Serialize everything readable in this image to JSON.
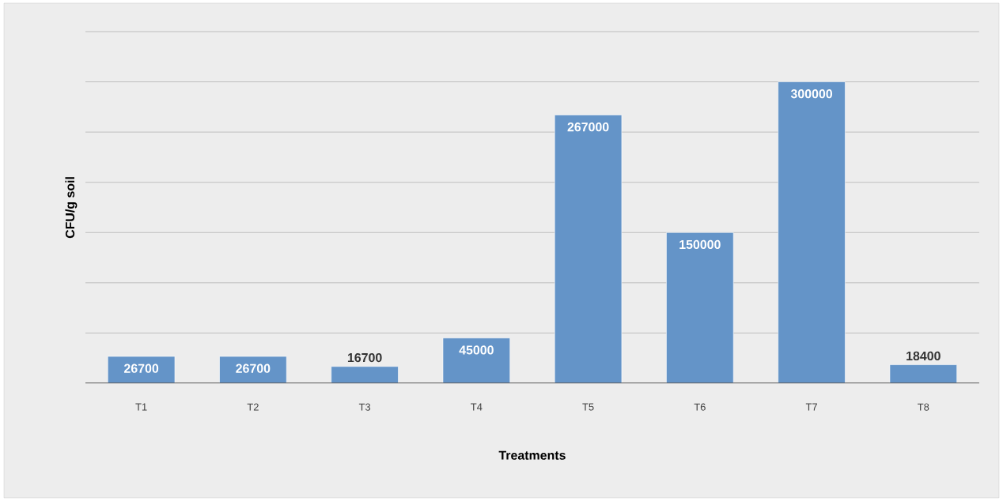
{
  "chart_data": {
    "type": "bar",
    "xlabel": "Treatments",
    "ylabel": "CFU/g soil",
    "categories": [
      "T1",
      "T2",
      "T3",
      "T4",
      "T5",
      "T6",
      "T7",
      "T8"
    ],
    "values": [
      26700,
      26700,
      16700,
      45000,
      267000,
      150000,
      300000,
      18400
    ],
    "color": "#6494c8",
    "ylim": [
      0,
      350000
    ],
    "yticks": [
      {
        "value": 0,
        "label": null
      },
      {
        "value": 50000,
        "label": null
      },
      {
        "value": 100000,
        "label": null
      },
      {
        "value": 150000,
        "label": null
      },
      {
        "value": 200000,
        "label": null
      },
      {
        "value": 250000,
        "label": null
      },
      {
        "value": 300000,
        "label": null
      },
      {
        "value": 350000,
        "label": null
      }
    ],
    "grid": "y",
    "tick_labels": "x",
    "data_labels": true
  }
}
